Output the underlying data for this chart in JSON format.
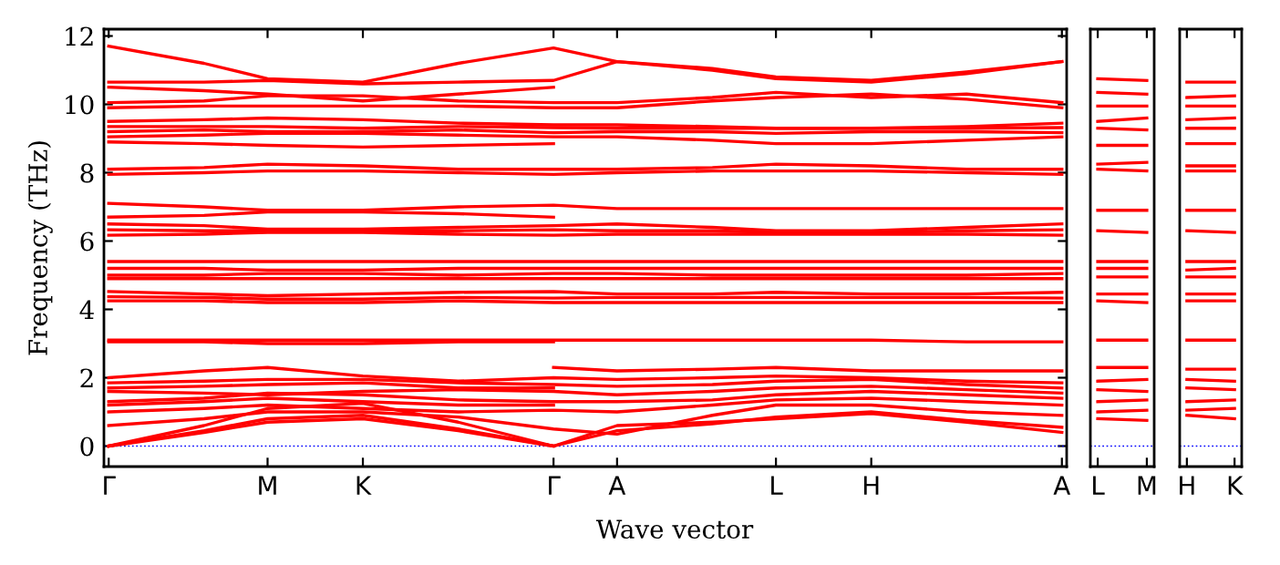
{
  "chart_data": [
    {
      "type": "line",
      "ylabel": "Frequency (THz)",
      "xlabel": "Wave vector",
      "ylim": [
        -0.6,
        12.2
      ],
      "yticks": [
        0,
        2,
        4,
        6,
        8,
        10,
        12
      ],
      "categories": [
        "Γ",
        null,
        null,
        null,
        null,
        "M",
        null,
        null,
        "K",
        null,
        null,
        null,
        null,
        null,
        "Γ",
        null,
        "A",
        null,
        null,
        null,
        null,
        "L",
        null,
        null,
        "H",
        null,
        null,
        null,
        null,
        null,
        "A"
      ],
      "grid": false,
      "legend": false,
      "line_style": "solid",
      "marker": "none",
      "ref_lines": [
        {
          "axis": "y",
          "value": 0,
          "color": "#0000ff",
          "line_style": "dotted"
        }
      ],
      "series": [
        {
          "color": "#ff0000",
          "values": [
            11.7,
            null,
            null,
            11.2,
            null,
            10.75,
            null,
            null,
            10.65,
            null,
            null,
            11.2,
            null,
            null,
            11.65,
            null,
            11.25,
            null,
            null,
            11.0,
            null,
            10.75,
            null,
            null,
            10.65,
            null,
            null,
            10.9,
            null,
            null,
            11.25
          ]
        },
        {
          "color": "#ff0000",
          "values": [
            10.65,
            null,
            null,
            10.65,
            null,
            10.7,
            null,
            null,
            10.6,
            null,
            null,
            10.65,
            null,
            null,
            10.7,
            null,
            11.25,
            null,
            null,
            11.05,
            null,
            10.8,
            null,
            null,
            10.7,
            null,
            null,
            10.95,
            null,
            null,
            11.25
          ]
        },
        {
          "color": "#ff0000",
          "values": [
            10.05,
            null,
            null,
            10.1,
            null,
            10.25,
            null,
            null,
            10.25,
            null,
            null,
            10.1,
            null,
            null,
            10.05,
            null,
            10.05,
            null,
            null,
            10.2,
            null,
            10.35,
            null,
            null,
            10.2,
            null,
            null,
            10.3,
            null,
            null,
            10.05
          ]
        },
        {
          "color": "#ff0000",
          "values": [
            9.9,
            null,
            null,
            9.95,
            null,
            9.95,
            null,
            null,
            9.95,
            null,
            null,
            9.95,
            null,
            null,
            9.9,
            null,
            9.9,
            null,
            null,
            10.1,
            null,
            10.2,
            null,
            null,
            10.3,
            null,
            null,
            10.15,
            null,
            null,
            9.9
          ]
        },
        {
          "color": "#ff0000",
          "values": [
            9.5,
            null,
            null,
            9.55,
            null,
            9.6,
            null,
            null,
            9.55,
            null,
            null,
            9.45,
            null,
            null,
            9.4,
            null,
            9.4,
            null,
            null,
            9.35,
            null,
            9.3,
            null,
            null,
            9.3,
            null,
            null,
            9.35,
            null,
            null,
            9.45
          ]
        },
        {
          "color": "#ff0000",
          "values": [
            9.35,
            null,
            null,
            9.35,
            null,
            9.35,
            null,
            null,
            9.3,
            null,
            null,
            9.35,
            null,
            null,
            9.32,
            null,
            9.3,
            null,
            null,
            9.3,
            null,
            9.3,
            null,
            null,
            9.3,
            null,
            null,
            9.3,
            null,
            null,
            9.32
          ]
        },
        {
          "color": "#ff0000",
          "values": [
            9.2,
            null,
            null,
            9.25,
            null,
            9.2,
            null,
            null,
            9.2,
            null,
            null,
            9.25,
            null,
            null,
            9.17,
            null,
            9.2,
            null,
            null,
            9.2,
            null,
            9.15,
            null,
            null,
            9.2,
            null,
            null,
            9.2,
            null,
            null,
            9.17
          ]
        },
        {
          "color": "#ff0000",
          "values": [
            9.05,
            null,
            null,
            9.1,
            null,
            9.15,
            null,
            null,
            9.15,
            null,
            null,
            9.1,
            null,
            null,
            9.05,
            null,
            9.05,
            null,
            null,
            8.95,
            null,
            8.85,
            null,
            null,
            8.85,
            null,
            null,
            8.95,
            null,
            null,
            9.05
          ]
        },
        {
          "color": "#ff0000",
          "values": [
            8.1,
            null,
            null,
            8.15,
            null,
            8.25,
            null,
            null,
            8.2,
            null,
            null,
            8.1,
            null,
            null,
            8.1,
            null,
            8.1,
            null,
            null,
            8.15,
            null,
            8.25,
            null,
            null,
            8.2,
            null,
            null,
            8.1,
            null,
            null,
            8.1
          ]
        },
        {
          "color": "#ff0000",
          "values": [
            7.95,
            null,
            null,
            8.0,
            null,
            8.05,
            null,
            null,
            8.05,
            null,
            null,
            8.0,
            null,
            null,
            7.95,
            null,
            8.0,
            null,
            null,
            8.05,
            null,
            8.05,
            null,
            null,
            8.05,
            null,
            null,
            8.0,
            null,
            null,
            7.95
          ]
        },
        {
          "color": "#ff0000",
          "values": [
            7.1,
            null,
            null,
            7.0,
            null,
            6.9,
            null,
            null,
            6.9,
            null,
            null,
            7.0,
            null,
            null,
            7.05,
            null,
            6.95,
            null,
            null,
            6.95,
            null,
            6.95,
            null,
            null,
            6.95,
            null,
            null,
            6.95,
            null,
            null,
            6.95
          ]
        },
        {
          "color": "#ff0000",
          "values": [
            6.33,
            null,
            null,
            6.3,
            null,
            6.3,
            null,
            null,
            6.3,
            null,
            null,
            6.3,
            null,
            null,
            6.33,
            null,
            6.3,
            null,
            null,
            6.3,
            null,
            6.25,
            null,
            null,
            6.25,
            null,
            null,
            6.3,
            null,
            null,
            6.33
          ]
        },
        {
          "color": "#ff0000",
          "values": [
            6.17,
            null,
            null,
            6.2,
            null,
            6.25,
            null,
            null,
            6.25,
            null,
            null,
            6.2,
            null,
            null,
            6.17,
            null,
            6.2,
            null,
            null,
            6.2,
            null,
            6.2,
            null,
            null,
            6.2,
            null,
            null,
            6.2,
            null,
            null,
            6.17
          ]
        },
        {
          "color": "#ff0000",
          "values": [
            5.4,
            null,
            null,
            5.4,
            null,
            5.4,
            null,
            null,
            5.4,
            null,
            null,
            5.4,
            null,
            null,
            5.4,
            null,
            5.4,
            null,
            null,
            5.4,
            null,
            5.4,
            null,
            null,
            5.4,
            null,
            null,
            5.4,
            null,
            null,
            5.4
          ]
        },
        {
          "color": "#ff0000",
          "values": [
            5.2,
            null,
            null,
            5.2,
            null,
            5.15,
            null,
            null,
            5.15,
            null,
            null,
            5.2,
            null,
            null,
            5.2,
            null,
            5.2,
            null,
            null,
            5.2,
            null,
            5.2,
            null,
            null,
            5.2,
            null,
            null,
            5.2,
            null,
            null,
            5.2
          ]
        },
        {
          "color": "#ff0000",
          "values": [
            5.0,
            null,
            null,
            5.0,
            null,
            5.05,
            null,
            null,
            5.05,
            null,
            null,
            5.0,
            null,
            null,
            5.05,
            null,
            5.05,
            null,
            null,
            5.0,
            null,
            5.0,
            null,
            null,
            5.0,
            null,
            null,
            5.0,
            null,
            null,
            5.05
          ]
        },
        {
          "color": "#ff0000",
          "values": [
            4.9,
            null,
            null,
            4.9,
            null,
            4.9,
            null,
            null,
            4.9,
            null,
            null,
            4.9,
            null,
            null,
            4.9,
            null,
            4.9,
            null,
            null,
            4.9,
            null,
            4.9,
            null,
            null,
            4.9,
            null,
            null,
            4.9,
            null,
            null,
            4.9
          ]
        },
        {
          "color": "#ff0000",
          "values": [
            4.52,
            null,
            null,
            4.45,
            null,
            4.4,
            null,
            null,
            4.45,
            null,
            null,
            4.5,
            null,
            null,
            4.52,
            null,
            4.45,
            null,
            null,
            4.45,
            null,
            4.5,
            null,
            null,
            4.45,
            null,
            null,
            4.45,
            null,
            null,
            4.5
          ]
        },
        {
          "color": "#ff0000",
          "values": [
            4.37,
            null,
            null,
            4.35,
            null,
            4.3,
            null,
            null,
            4.3,
            null,
            null,
            4.35,
            null,
            null,
            4.33,
            null,
            4.35,
            null,
            null,
            4.35,
            null,
            4.35,
            null,
            null,
            4.35,
            null,
            null,
            4.35,
            null,
            null,
            4.33
          ]
        },
        {
          "color": "#ff0000",
          "values": [
            4.25,
            null,
            null,
            4.25,
            null,
            4.2,
            null,
            null,
            4.2,
            null,
            null,
            4.25,
            null,
            null,
            4.2,
            null,
            4.2,
            null,
            null,
            4.2,
            null,
            4.2,
            null,
            null,
            4.2,
            null,
            null,
            4.2,
            null,
            null,
            4.2
          ]
        },
        {
          "color": "#ff0000",
          "values": [
            3.1,
            null,
            null,
            3.1,
            null,
            3.1,
            null,
            null,
            3.1,
            null,
            null,
            3.1,
            null,
            null,
            3.1,
            null,
            3.1,
            null,
            null,
            3.1,
            null,
            3.1,
            null,
            null,
            3.1,
            null,
            null,
            3.05,
            null,
            null,
            3.05
          ]
        },
        {
          "color": "#ff0000",
          "values": [
            2.0,
            null,
            null,
            2.2,
            null,
            2.3,
            null,
            null,
            2.05,
            null,
            null,
            1.9,
            null,
            null,
            2.0,
            null,
            1.95,
            null,
            null,
            2.0,
            null,
            2.05,
            null,
            null,
            2.0,
            null,
            null,
            1.9,
            null,
            null,
            1.85
          ]
        },
        {
          "color": "#ff0000",
          "values": [
            1.85,
            null,
            null,
            1.9,
            null,
            1.95,
            null,
            null,
            1.95,
            null,
            null,
            1.85,
            null,
            null,
            1.8,
            null,
            1.75,
            null,
            null,
            1.8,
            null,
            1.9,
            null,
            null,
            1.95,
            null,
            null,
            1.8,
            null,
            null,
            1.7
          ]
        },
        {
          "color": "#ff0000",
          "values": [
            1.6,
            null,
            null,
            1.55,
            null,
            1.5,
            null,
            null,
            1.6,
            null,
            null,
            1.65,
            null,
            null,
            1.6,
            null,
            1.5,
            null,
            null,
            1.6,
            null,
            1.7,
            null,
            null,
            1.75,
            null,
            null,
            1.65,
            null,
            null,
            1.55
          ]
        },
        {
          "color": "#ff0000",
          "values": [
            1.3,
            null,
            null,
            1.4,
            null,
            1.55,
            null,
            null,
            1.5,
            null,
            null,
            1.35,
            null,
            null,
            1.3,
            null,
            1.3,
            null,
            null,
            1.35,
            null,
            1.5,
            null,
            null,
            1.6,
            null,
            null,
            1.5,
            null,
            null,
            1.4
          ]
        },
        {
          "color": "#ff0000",
          "values": [
            0.0,
            null,
            null,
            0.6,
            null,
            1.1,
            null,
            null,
            1.25,
            null,
            null,
            0.7,
            null,
            null,
            0.0,
            null,
            0.6,
            null,
            null,
            0.7,
            null,
            0.8,
            null,
            null,
            0.95,
            null,
            null,
            0.7,
            null,
            null,
            0.4
          ]
        },
        {
          "color": "#ff0000",
          "values": [
            0.0,
            null,
            null,
            0.45,
            null,
            0.8,
            null,
            null,
            0.9,
            null,
            null,
            0.5,
            null,
            null,
            0.0,
            null,
            0.45,
            null,
            null,
            0.65,
            null,
            0.85,
            null,
            null,
            1.0,
            null,
            null,
            0.75,
            null,
            null,
            0.55
          ]
        },
        {
          "color": "#ff0000",
          "values": [
            10.5,
            null,
            null,
            10.4,
            null,
            10.3,
            null,
            null,
            10.1,
            null,
            null,
            10.3,
            null,
            null,
            10.5,
            null,
            null,
            null,
            null,
            null,
            null,
            null,
            null,
            null,
            null,
            null,
            null,
            null,
            null,
            null,
            null
          ]
        },
        {
          "color": "#ff0000",
          "values": [
            8.9,
            null,
            null,
            8.85,
            null,
            8.8,
            null,
            null,
            8.75,
            null,
            null,
            8.8,
            null,
            null,
            8.85,
            null,
            null,
            null,
            null,
            null,
            null,
            null,
            null,
            null,
            null,
            null,
            null,
            null,
            null,
            null,
            null
          ]
        },
        {
          "color": "#ff0000",
          "values": [
            6.7,
            null,
            null,
            6.75,
            null,
            6.85,
            null,
            null,
            6.85,
            null,
            null,
            6.8,
            null,
            null,
            6.7,
            null,
            null,
            null,
            null,
            null,
            null,
            null,
            null,
            null,
            null,
            null,
            null,
            null,
            null,
            null,
            null
          ]
        },
        {
          "color": "#ff0000",
          "values": [
            6.5,
            null,
            null,
            6.45,
            null,
            6.35,
            null,
            null,
            6.35,
            null,
            null,
            6.4,
            null,
            null,
            6.45,
            null,
            6.5,
            null,
            null,
            6.4,
            null,
            6.3,
            null,
            null,
            6.3,
            null,
            null,
            6.4,
            null,
            null,
            6.5
          ]
        },
        {
          "color": "#ff0000",
          "values": [
            3.05,
            null,
            null,
            3.05,
            null,
            3.0,
            null,
            null,
            3.0,
            null,
            null,
            3.05,
            null,
            null,
            3.05,
            null,
            null,
            null,
            null,
            null,
            null,
            null,
            null,
            null,
            null,
            null,
            null,
            null,
            null,
            null,
            null
          ]
        },
        {
          "color": "#ff0000",
          "values": [
            1.7,
            null,
            null,
            1.75,
            null,
            1.8,
            null,
            null,
            1.85,
            null,
            null,
            1.7,
            null,
            null,
            1.7,
            null,
            null,
            null,
            null,
            null,
            null,
            null,
            null,
            null,
            null,
            null,
            null,
            null,
            null,
            null,
            null
          ]
        },
        {
          "color": "#ff0000",
          "values": [
            1.2,
            null,
            null,
            1.3,
            null,
            1.4,
            null,
            null,
            1.3,
            null,
            null,
            1.2,
            null,
            null,
            1.2,
            null,
            null,
            null,
            null,
            null,
            null,
            null,
            null,
            null,
            null,
            null,
            null,
            null,
            null,
            null,
            null
          ]
        },
        {
          "color": "#ff0000",
          "values": [
            1.0,
            null,
            null,
            1.1,
            null,
            1.2,
            null,
            null,
            1.1,
            null,
            null,
            1.0,
            null,
            null,
            1.05,
            null,
            1.0,
            null,
            null,
            1.2,
            null,
            1.35,
            null,
            null,
            1.4,
            null,
            null,
            1.3,
            null,
            null,
            1.2
          ]
        },
        {
          "color": "#ff0000",
          "values": [
            0.0,
            null,
            null,
            0.4,
            null,
            0.7,
            null,
            null,
            0.8,
            null,
            null,
            0.45,
            null,
            null,
            0.0,
            null,
            null,
            null,
            null,
            null,
            null,
            null,
            null,
            null,
            null,
            null,
            null,
            null,
            null,
            null,
            null
          ]
        },
        {
          "color": "#ff0000",
          "values": [
            0.6,
            null,
            null,
            0.8,
            null,
            1.0,
            null,
            null,
            1.0,
            null,
            null,
            0.85,
            null,
            null,
            0.5,
            null,
            0.35,
            null,
            null,
            0.9,
            null,
            1.2,
            null,
            null,
            1.2,
            null,
            null,
            1.0,
            null,
            null,
            0.9
          ]
        },
        {
          "color": "#ff0000",
          "values": [
            null,
            null,
            null,
            null,
            null,
            null,
            null,
            null,
            null,
            null,
            null,
            null,
            null,
            null,
            2.3,
            null,
            2.2,
            null,
            null,
            2.25,
            null,
            2.3,
            null,
            null,
            2.2,
            null,
            null,
            2.2,
            null,
            null,
            2.2
          ]
        }
      ]
    },
    {
      "type": "line",
      "ylim": [
        -0.6,
        12.2
      ],
      "yticks": [
        0,
        2,
        4,
        6,
        8,
        10,
        12
      ],
      "categories": [
        "L",
        "M"
      ],
      "tick_labels": "x",
      "grid": false,
      "legend": false,
      "line_style": "solid",
      "marker": "none",
      "ref_lines": [
        {
          "axis": "y",
          "value": 0,
          "color": "#0000ff",
          "line_style": "dotted"
        }
      ],
      "series": [
        {
          "color": "#ff0000",
          "values": [
            10.75,
            10.7
          ]
        },
        {
          "color": "#ff0000",
          "values": [
            10.35,
            10.3
          ]
        },
        {
          "color": "#ff0000",
          "values": [
            9.95,
            9.95
          ]
        },
        {
          "color": "#ff0000",
          "values": [
            9.5,
            9.6
          ]
        },
        {
          "color": "#ff0000",
          "values": [
            9.3,
            9.25
          ]
        },
        {
          "color": "#ff0000",
          "values": [
            8.8,
            8.8
          ]
        },
        {
          "color": "#ff0000",
          "values": [
            8.25,
            8.3
          ]
        },
        {
          "color": "#ff0000",
          "values": [
            8.1,
            8.05
          ]
        },
        {
          "color": "#ff0000",
          "values": [
            6.9,
            6.9
          ]
        },
        {
          "color": "#ff0000",
          "values": [
            6.3,
            6.25
          ]
        },
        {
          "color": "#ff0000",
          "values": [
            5.4,
            5.4
          ]
        },
        {
          "color": "#ff0000",
          "values": [
            5.2,
            5.2
          ]
        },
        {
          "color": "#ff0000",
          "values": [
            4.95,
            4.95
          ]
        },
        {
          "color": "#ff0000",
          "values": [
            4.45,
            4.45
          ]
        },
        {
          "color": "#ff0000",
          "values": [
            4.25,
            4.2
          ]
        },
        {
          "color": "#ff0000",
          "values": [
            3.1,
            3.1
          ]
        },
        {
          "color": "#ff0000",
          "values": [
            2.3,
            2.3
          ]
        },
        {
          "color": "#ff0000",
          "values": [
            1.9,
            1.95
          ]
        },
        {
          "color": "#ff0000",
          "values": [
            1.65,
            1.6
          ]
        },
        {
          "color": "#ff0000",
          "values": [
            1.3,
            1.35
          ]
        },
        {
          "color": "#ff0000",
          "values": [
            1.0,
            1.05
          ]
        },
        {
          "color": "#ff0000",
          "values": [
            0.8,
            0.75
          ]
        }
      ]
    },
    {
      "type": "line",
      "ylim": [
        -0.6,
        12.2
      ],
      "yticks": [
        0,
        2,
        4,
        6,
        8,
        10,
        12
      ],
      "categories": [
        "H",
        "K"
      ],
      "tick_labels": "x",
      "grid": false,
      "legend": false,
      "line_style": "solid",
      "marker": "none",
      "ref_lines": [
        {
          "axis": "y",
          "value": 0,
          "color": "#0000ff",
          "line_style": "dotted"
        }
      ],
      "series": [
        {
          "color": "#ff0000",
          "values": [
            10.65,
            10.65
          ]
        },
        {
          "color": "#ff0000",
          "values": [
            10.2,
            10.25
          ]
        },
        {
          "color": "#ff0000",
          "values": [
            9.95,
            9.95
          ]
        },
        {
          "color": "#ff0000",
          "values": [
            9.55,
            9.6
          ]
        },
        {
          "color": "#ff0000",
          "values": [
            9.3,
            9.3
          ]
        },
        {
          "color": "#ff0000",
          "values": [
            8.85,
            8.85
          ]
        },
        {
          "color": "#ff0000",
          "values": [
            8.2,
            8.2
          ]
        },
        {
          "color": "#ff0000",
          "values": [
            8.05,
            8.05
          ]
        },
        {
          "color": "#ff0000",
          "values": [
            6.9,
            6.9
          ]
        },
        {
          "color": "#ff0000",
          "values": [
            6.3,
            6.25
          ]
        },
        {
          "color": "#ff0000",
          "values": [
            5.4,
            5.4
          ]
        },
        {
          "color": "#ff0000",
          "values": [
            5.15,
            5.2
          ]
        },
        {
          "color": "#ff0000",
          "values": [
            4.95,
            4.95
          ]
        },
        {
          "color": "#ff0000",
          "values": [
            4.45,
            4.45
          ]
        },
        {
          "color": "#ff0000",
          "values": [
            4.25,
            4.25
          ]
        },
        {
          "color": "#ff0000",
          "values": [
            3.1,
            3.1
          ]
        },
        {
          "color": "#ff0000",
          "values": [
            2.25,
            2.25
          ]
        },
        {
          "color": "#ff0000",
          "values": [
            1.95,
            1.9
          ]
        },
        {
          "color": "#ff0000",
          "values": [
            1.7,
            1.65
          ]
        },
        {
          "color": "#ff0000",
          "values": [
            1.3,
            1.35
          ]
        },
        {
          "color": "#ff0000",
          "values": [
            1.05,
            1.1
          ]
        },
        {
          "color": "#ff0000",
          "values": [
            0.9,
            0.8
          ]
        }
      ]
    }
  ]
}
